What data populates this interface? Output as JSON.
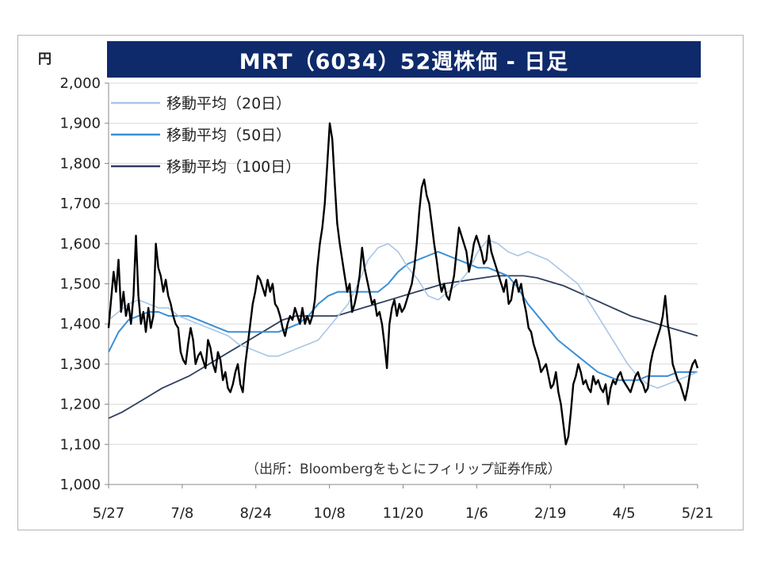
{
  "chart_data": {
    "type": "line",
    "title": "MRT（6034）52週株価 - 日足",
    "unit_label": "円",
    "source_note": "（出所：Bloombergをもとにフィリップ証券作成）",
    "y_ticks": [
      "1,000",
      "1,100",
      "1,200",
      "1,300",
      "1,400",
      "1,500",
      "1,600",
      "1,700",
      "1,800",
      "1,900",
      "2,000"
    ],
    "ylim": [
      1000,
      2000
    ],
    "x_ticks": [
      "5/27",
      "7/8",
      "8/24",
      "10/8",
      "11/20",
      "1/6",
      "2/19",
      "4/5",
      "5/21"
    ],
    "grid": "horizontal",
    "legend_position": "top-left",
    "legend": [
      {
        "label": "移動平均（20日）",
        "color": "#a9c6e6"
      },
      {
        "label": "移動平均（50日）",
        "color": "#3a8fd6"
      },
      {
        "label": "移動平均（100日）",
        "color": "#2f3f5f"
      }
    ],
    "price_color": "#000000",
    "series": [
      {
        "name": "株価",
        "values": [
          1390,
          1460,
          1530,
          1480,
          1560,
          1430,
          1480,
          1420,
          1450,
          1400,
          1470,
          1620,
          1470,
          1400,
          1430,
          1380,
          1440,
          1390,
          1420,
          1600,
          1540,
          1520,
          1480,
          1510,
          1470,
          1450,
          1420,
          1400,
          1390,
          1330,
          1310,
          1300,
          1350,
          1390,
          1360,
          1300,
          1320,
          1330,
          1310,
          1290,
          1360,
          1340,
          1300,
          1280,
          1330,
          1310,
          1260,
          1280,
          1240,
          1230,
          1250,
          1280,
          1300,
          1250,
          1230,
          1300,
          1350,
          1400,
          1450,
          1480,
          1520,
          1510,
          1490,
          1470,
          1510,
          1480,
          1500,
          1450,
          1440,
          1420,
          1390,
          1370,
          1400,
          1420,
          1410,
          1440,
          1420,
          1400,
          1440,
          1400,
          1420,
          1400,
          1420,
          1460,
          1540,
          1600,
          1640,
          1700,
          1800,
          1900,
          1860,
          1750,
          1650,
          1600,
          1560,
          1520,
          1480,
          1500,
          1430,
          1450,
          1480,
          1520,
          1590,
          1540,
          1510,
          1480,
          1450,
          1460,
          1420,
          1430,
          1400,
          1350,
          1290,
          1400,
          1440,
          1460,
          1420,
          1450,
          1430,
          1440,
          1460,
          1480,
          1500,
          1540,
          1600,
          1680,
          1740,
          1760,
          1720,
          1700,
          1650,
          1600,
          1560,
          1510,
          1480,
          1500,
          1470,
          1460,
          1490,
          1520,
          1580,
          1640,
          1620,
          1600,
          1580,
          1530,
          1560,
          1600,
          1620,
          1600,
          1580,
          1550,
          1560,
          1620,
          1580,
          1560,
          1540,
          1520,
          1500,
          1480,
          1510,
          1450,
          1460,
          1500,
          1510,
          1480,
          1500,
          1460,
          1430,
          1390,
          1380,
          1350,
          1330,
          1310,
          1280,
          1290,
          1300,
          1270,
          1240,
          1250,
          1280,
          1230,
          1200,
          1150,
          1100,
          1120,
          1180,
          1250,
          1270,
          1300,
          1280,
          1250,
          1260,
          1240,
          1230,
          1270,
          1250,
          1260,
          1240,
          1230,
          1250,
          1200,
          1240,
          1260,
          1250,
          1270,
          1280,
          1260,
          1250,
          1240,
          1230,
          1250,
          1270,
          1280,
          1260,
          1250,
          1230,
          1240,
          1300,
          1330,
          1350,
          1370,
          1390,
          1420,
          1470,
          1400,
          1360,
          1300,
          1280,
          1260,
          1250,
          1230,
          1210,
          1240,
          1280,
          1300,
          1310,
          1290
        ]
      },
      {
        "name": "移動平均（20日）",
        "values": [
          1410,
          1430,
          1450,
          1460,
          1450,
          1440,
          1440,
          1420,
          1410,
          1400,
          1390,
          1380,
          1370,
          1350,
          1340,
          1330,
          1320,
          1320,
          1330,
          1340,
          1350,
          1360,
          1390,
          1420,
          1450,
          1500,
          1560,
          1590,
          1600,
          1580,
          1540,
          1510,
          1470,
          1460,
          1480,
          1500,
          1530,
          1580,
          1610,
          1600,
          1580,
          1570,
          1580,
          1570,
          1560,
          1540,
          1520,
          1500,
          1460,
          1420,
          1380,
          1340,
          1300,
          1270,
          1250,
          1240,
          1250,
          1260,
          1270,
          1280
        ]
      },
      {
        "name": "移動平均（50日）",
        "values": [
          1330,
          1380,
          1410,
          1420,
          1430,
          1430,
          1420,
          1420,
          1420,
          1410,
          1400,
          1390,
          1380,
          1380,
          1380,
          1380,
          1380,
          1380,
          1390,
          1400,
          1420,
          1450,
          1470,
          1480,
          1480,
          1480,
          1480,
          1480,
          1500,
          1530,
          1550,
          1560,
          1570,
          1580,
          1570,
          1560,
          1550,
          1540,
          1540,
          1530,
          1520,
          1490,
          1450,
          1420,
          1390,
          1360,
          1340,
          1320,
          1300,
          1280,
          1270,
          1260,
          1260,
          1260,
          1270,
          1270,
          1270,
          1280,
          1280,
          1280
        ]
      },
      {
        "name": "移動平均（100日）",
        "values": [
          1165,
          1180,
          1200,
          1220,
          1240,
          1255,
          1270,
          1290,
          1310,
          1330,
          1350,
          1370,
          1390,
          1410,
          1420,
          1420,
          1420,
          1420,
          1430,
          1440,
          1450,
          1460,
          1470,
          1480,
          1490,
          1500,
          1505,
          1510,
          1515,
          1520,
          1520,
          1520,
          1515,
          1505,
          1495,
          1480,
          1465,
          1450,
          1435,
          1420,
          1410,
          1400,
          1390,
          1380,
          1370
        ]
      }
    ]
  }
}
